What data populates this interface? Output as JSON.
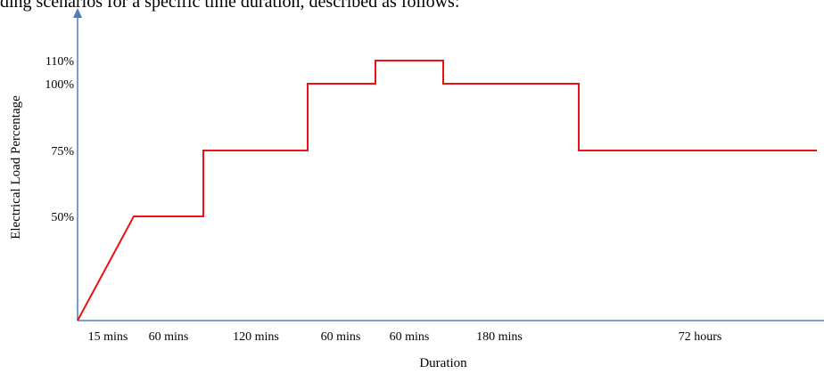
{
  "caption": "ding scenarios for a specific time duration, described as follows:",
  "chart_data": {
    "type": "line",
    "xlabel": "Duration",
    "ylabel": "Electrical  Load Percentage",
    "y_ticks": [
      "50%",
      "75%",
      "100%",
      "110%"
    ],
    "y_tick_values": [
      50,
      75,
      100,
      110
    ],
    "ylim": [
      0,
      130
    ],
    "segments": [
      {
        "label": "15 mins",
        "load_start": 0,
        "load_end": 50
      },
      {
        "label": "60 mins",
        "load_start": 50,
        "load_end": 50
      },
      {
        "label": "120 mins",
        "load_start": 75,
        "load_end": 75
      },
      {
        "label": "60 mins",
        "load_start": 100,
        "load_end": 100
      },
      {
        "label": "60 mins",
        "load_start": 110,
        "load_end": 110
      },
      {
        "label": "180 mins",
        "load_start": 100,
        "load_end": 100
      },
      {
        "label": "72 hours",
        "load_start": 75,
        "load_end": 75
      }
    ],
    "series_color": "#ee1111",
    "axis_color": "#4a7ebb",
    "grid": false,
    "legend": "none"
  }
}
